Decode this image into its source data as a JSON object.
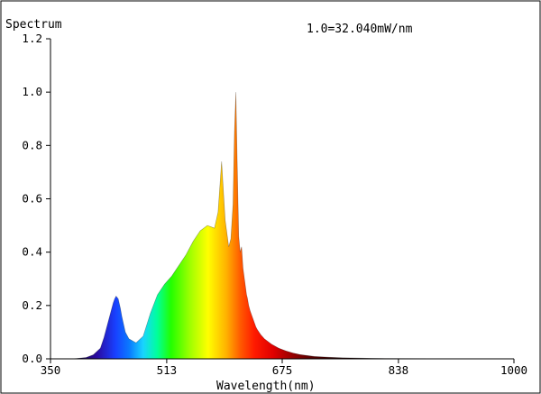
{
  "chart_data": {
    "type": "area",
    "title": "Spectrum",
    "scale_note": "1.0=32.040mW/nm",
    "xlabel": "Wavelength(nm)",
    "ylabel": "",
    "xlim": [
      350,
      1000
    ],
    "ylim": [
      0,
      1.2
    ],
    "x_ticks": [
      "350",
      "513",
      "675",
      "838",
      "1000"
    ],
    "y_ticks": [
      "0.0",
      "0.2",
      "0.4",
      "0.6",
      "0.8",
      "1.0",
      "1.2"
    ],
    "grid": false,
    "series": [
      {
        "x": [
          350,
          380,
          400,
          410,
          420,
          425,
          430,
          435,
          438,
          440,
          442,
          445,
          448,
          450,
          455,
          460,
          470,
          480,
          490,
          500,
          510,
          520,
          530,
          540,
          550,
          560,
          570,
          575,
          580,
          585,
          590,
          595,
          600,
          603,
          606,
          608,
          610,
          612,
          614,
          616,
          618,
          620,
          622,
          624,
          625,
          626,
          628,
          630,
          632,
          634,
          636,
          638,
          640,
          645,
          650,
          660,
          670,
          680,
          690,
          700,
          720,
          740,
          760,
          780,
          800,
          820,
          850,
          880,
          900,
          950,
          1000
        ],
        "y": [
          0.0,
          0.0,
          0.005,
          0.015,
          0.04,
          0.08,
          0.13,
          0.18,
          0.21,
          0.225,
          0.235,
          0.225,
          0.19,
          0.16,
          0.1,
          0.075,
          0.06,
          0.085,
          0.17,
          0.24,
          0.28,
          0.31,
          0.35,
          0.39,
          0.44,
          0.48,
          0.5,
          0.495,
          0.49,
          0.55,
          0.74,
          0.52,
          0.42,
          0.45,
          0.58,
          0.85,
          1.0,
          0.72,
          0.46,
          0.4,
          0.42,
          0.34,
          0.3,
          0.26,
          0.24,
          0.23,
          0.2,
          0.18,
          0.165,
          0.15,
          0.135,
          0.12,
          0.11,
          0.09,
          0.075,
          0.055,
          0.04,
          0.03,
          0.022,
          0.016,
          0.009,
          0.006,
          0.004,
          0.003,
          0.002,
          0.0015,
          0.001,
          0.0008,
          0.0005,
          0.0002,
          0.0
        ]
      }
    ]
  }
}
